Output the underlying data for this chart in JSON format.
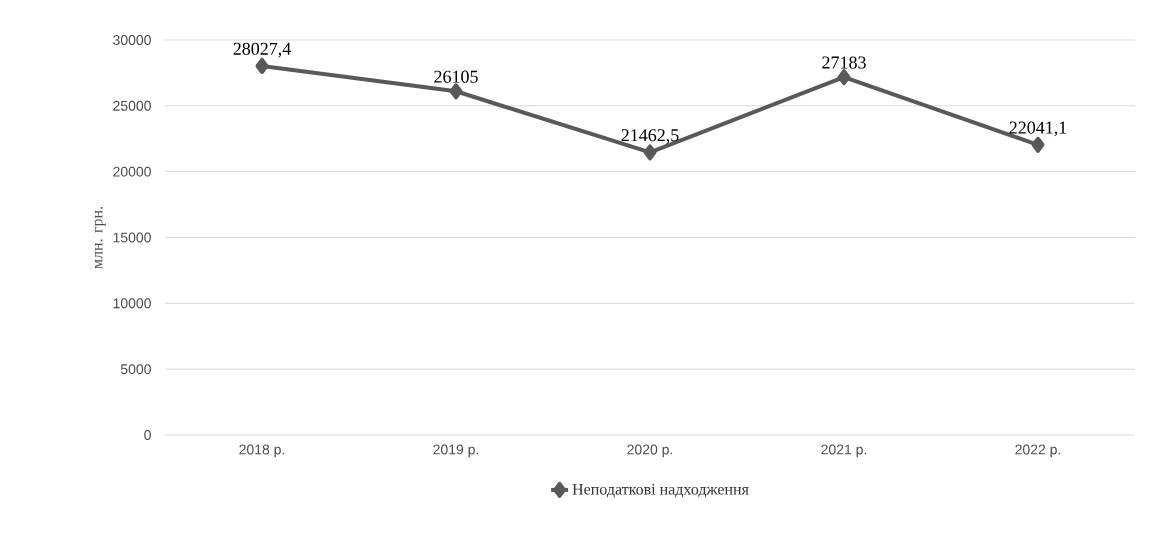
{
  "chart_data": {
    "type": "line",
    "ylabel": "млн. грн.",
    "categories": [
      "2018 р.",
      "2019 р.",
      "2020 р.",
      "2021 р.",
      "2022 р."
    ],
    "series": [
      {
        "name": "Неподаткові надходження",
        "color": "#595959",
        "values": [
          28027.4,
          26105,
          21462.5,
          27183,
          22041.1
        ],
        "value_labels": [
          "28027,4",
          "26105",
          "21462,5",
          "27183",
          "22041,1"
        ]
      }
    ],
    "ylim": [
      0,
      30000
    ],
    "yticks": [
      0,
      5000,
      10000,
      15000,
      20000,
      25000,
      30000
    ],
    "grid": "y",
    "legend": "bottom",
    "marker": "diamond",
    "line_style": "solid"
  }
}
